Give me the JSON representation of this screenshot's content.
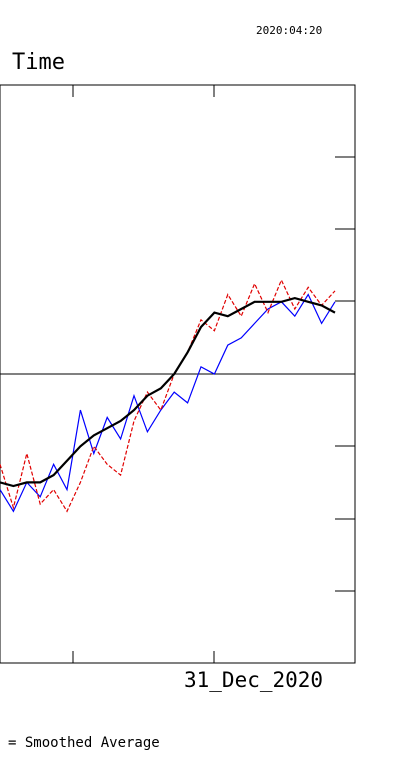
{
  "header": {
    "stamp": "2020:04:20",
    "title": "Time"
  },
  "legend": {
    "text": "= Smoothed Average"
  },
  "chart_data": {
    "type": "line",
    "title": "Time",
    "xtick_label": "31_Dec_2020",
    "grid": false,
    "colors": {
      "blue": "#0000ff",
      "red": "#e00000",
      "black": "#000000"
    },
    "series": [
      {
        "color": "#0000ff",
        "style": "solid",
        "points": [
          [
            0,
            0.48
          ],
          [
            0.04,
            0.42
          ],
          [
            0.08,
            0.5
          ],
          [
            0.12,
            0.46
          ],
          [
            0.16,
            0.55
          ],
          [
            0.2,
            0.48
          ],
          [
            0.24,
            0.7
          ],
          [
            0.28,
            0.58
          ],
          [
            0.32,
            0.68
          ],
          [
            0.36,
            0.62
          ],
          [
            0.4,
            0.74
          ],
          [
            0.44,
            0.64
          ],
          [
            0.48,
            0.7
          ],
          [
            0.52,
            0.75
          ],
          [
            0.56,
            0.72
          ],
          [
            0.6,
            0.82
          ],
          [
            0.64,
            0.8
          ],
          [
            0.68,
            0.88
          ],
          [
            0.72,
            0.9
          ],
          [
            0.76,
            0.94
          ],
          [
            0.8,
            0.98
          ],
          [
            0.84,
            1.0
          ],
          [
            0.88,
            0.96
          ],
          [
            0.92,
            1.02
          ],
          [
            0.96,
            0.94
          ],
          [
            1.0,
            1.0
          ]
        ]
      },
      {
        "color": "#e00000",
        "style": "dashed",
        "points": [
          [
            0,
            0.55
          ],
          [
            0.04,
            0.43
          ],
          [
            0.08,
            0.58
          ],
          [
            0.12,
            0.44
          ],
          [
            0.16,
            0.48
          ],
          [
            0.2,
            0.42
          ],
          [
            0.24,
            0.5
          ],
          [
            0.28,
            0.6
          ],
          [
            0.32,
            0.55
          ],
          [
            0.36,
            0.52
          ],
          [
            0.4,
            0.67
          ],
          [
            0.44,
            0.75
          ],
          [
            0.48,
            0.7
          ],
          [
            0.52,
            0.8
          ],
          [
            0.56,
            0.86
          ],
          [
            0.6,
            0.95
          ],
          [
            0.64,
            0.92
          ],
          [
            0.68,
            1.02
          ],
          [
            0.72,
            0.96
          ],
          [
            0.76,
            1.05
          ],
          [
            0.8,
            0.97
          ],
          [
            0.84,
            1.06
          ],
          [
            0.88,
            0.98
          ],
          [
            0.92,
            1.04
          ],
          [
            0.96,
            0.99
          ],
          [
            1.0,
            1.03
          ]
        ]
      },
      {
        "color": "#000000",
        "style": "thick",
        "points": [
          [
            0,
            0.5
          ],
          [
            0.04,
            0.49
          ],
          [
            0.08,
            0.5
          ],
          [
            0.12,
            0.5
          ],
          [
            0.16,
            0.52
          ],
          [
            0.2,
            0.56
          ],
          [
            0.24,
            0.6
          ],
          [
            0.28,
            0.63
          ],
          [
            0.32,
            0.65
          ],
          [
            0.36,
            0.67
          ],
          [
            0.4,
            0.7
          ],
          [
            0.44,
            0.74
          ],
          [
            0.48,
            0.76
          ],
          [
            0.52,
            0.8
          ],
          [
            0.56,
            0.86
          ],
          [
            0.6,
            0.93
          ],
          [
            0.64,
            0.97
          ],
          [
            0.68,
            0.96
          ],
          [
            0.72,
            0.98
          ],
          [
            0.76,
            1.0
          ],
          [
            0.8,
            1.0
          ],
          [
            0.84,
            1.0
          ],
          [
            0.88,
            1.01
          ],
          [
            0.92,
            1.0
          ],
          [
            0.96,
            0.99
          ],
          [
            1.0,
            0.97
          ]
        ]
      }
    ]
  }
}
